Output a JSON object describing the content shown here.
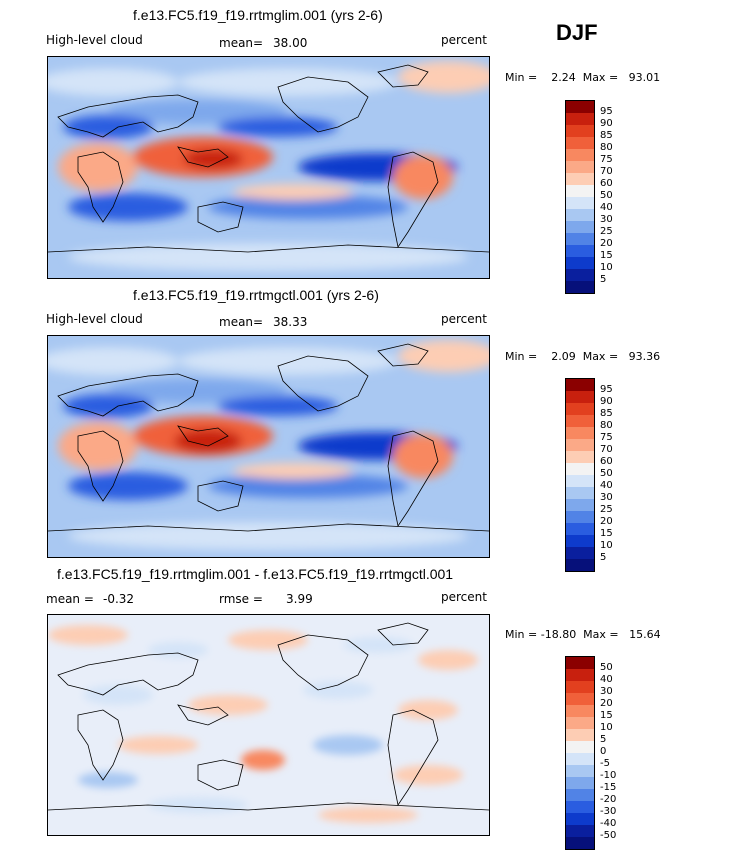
{
  "season": "DJF",
  "panels": [
    {
      "title": "f.e13.FC5.f19_f19.rrtmglim.001 (yrs 2-6)",
      "variable": "High-level cloud",
      "stat_label": "mean=",
      "stat_value": "38.00",
      "units": "percent",
      "minmax": "Min =    2.24  Max =   93.01",
      "colorbar": {
        "labels": [
          "95",
          "90",
          "85",
          "80",
          "75",
          "70",
          "60",
          "50",
          "40",
          "30",
          "25",
          "20",
          "15",
          "10",
          "5"
        ],
        "colors": [
          "#8b0000",
          "#c8200e",
          "#e2401f",
          "#f0603a",
          "#f88860",
          "#fba987",
          "#fdcdb4",
          "#f3f3f3",
          "#d4e4f8",
          "#a9c8f2",
          "#7ea8ec",
          "#5183e6",
          "#2a5de0",
          "#0e3bcc",
          "#0a1f9e",
          "#06107a"
        ]
      }
    },
    {
      "title": "f.e13.FC5.f19_f19.rrtmgctl.001 (yrs 2-6)",
      "variable": "High-level cloud",
      "stat_label": "mean=",
      "stat_value": "38.33",
      "units": "percent",
      "minmax": "Min =    2.09  Max =   93.36",
      "colorbar": {
        "labels": [
          "95",
          "90",
          "85",
          "80",
          "75",
          "70",
          "60",
          "50",
          "40",
          "30",
          "25",
          "20",
          "15",
          "10",
          "5"
        ],
        "colors": [
          "#8b0000",
          "#c8200e",
          "#e2401f",
          "#f0603a",
          "#f88860",
          "#fba987",
          "#fdcdb4",
          "#f3f3f3",
          "#d4e4f8",
          "#a9c8f2",
          "#7ea8ec",
          "#5183e6",
          "#2a5de0",
          "#0e3bcc",
          "#0a1f9e",
          "#06107a"
        ]
      }
    },
    {
      "title": "f.e13.FC5.f19_f19.rrtmglim.001 - f.e13.FC5.f19_f19.rrtmgctl.001",
      "mean_label": "mean =",
      "mean_value": "-0.32",
      "rmse_label": "rmse =",
      "rmse_value": "3.99",
      "units": "percent",
      "minmax": "Min = -18.80  Max =   15.64",
      "colorbar": {
        "labels": [
          "50",
          "40",
          "30",
          "20",
          "15",
          "10",
          "5",
          "0",
          "-5",
          "-10",
          "-15",
          "-20",
          "-30",
          "-40",
          "-50"
        ],
        "colors": [
          "#8b0000",
          "#c8200e",
          "#e2401f",
          "#f0603a",
          "#f88860",
          "#fba987",
          "#fdcdb4",
          "#f3f3f3",
          "#d4e4f8",
          "#a9c8f2",
          "#7ea8ec",
          "#5183e6",
          "#2a5de0",
          "#0e3bcc",
          "#0a1f9e",
          "#06107a"
        ]
      }
    }
  ]
}
